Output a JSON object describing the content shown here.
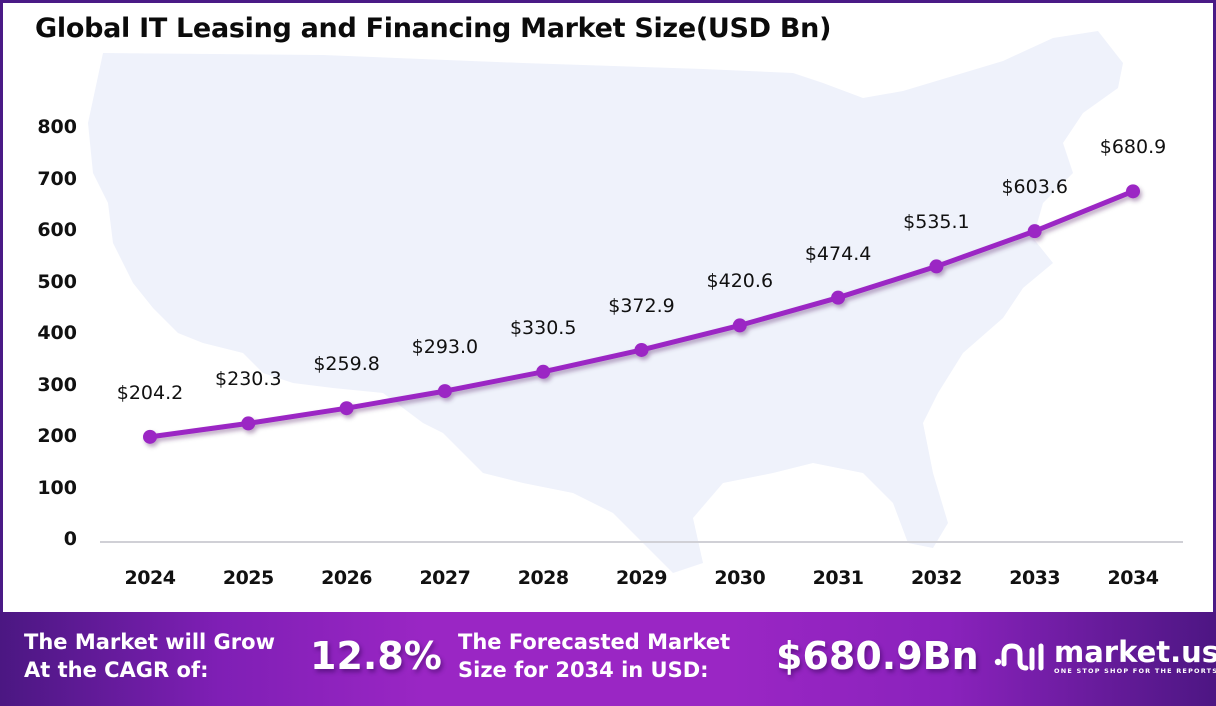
{
  "title": "Global IT Leasing and Financing Market Size(USD Bn)",
  "colors": {
    "line": "#9b27c4",
    "border": "#4a1a86",
    "map": "#eff2fb",
    "axis": "#d0d0d6",
    "footer_start": "#4b1782",
    "footer_mid": "#9a26c4"
  },
  "chart_data": {
    "type": "line",
    "title": "Global IT Leasing and Financing Market Size(USD Bn)",
    "xlabel": "",
    "ylabel": "",
    "categories": [
      "2024",
      "2025",
      "2026",
      "2027",
      "2028",
      "2029",
      "2030",
      "2031",
      "2032",
      "2033",
      "2034"
    ],
    "series": [
      {
        "name": "Market Size (USD Bn)",
        "values": [
          204.2,
          230.3,
          259.8,
          293.0,
          330.5,
          372.9,
          420.6,
          474.4,
          535.1,
          603.6,
          680.9
        ]
      }
    ],
    "data_labels": [
      "$204.2",
      "$230.3",
      "$259.8",
      "$293.0",
      "$330.5",
      "$372.9",
      "$420.6",
      "$474.4",
      "$535.1",
      "$603.6",
      "$680.9"
    ],
    "yticks": [
      "0",
      "100",
      "200",
      "300",
      "400",
      "500",
      "600",
      "700",
      "800"
    ],
    "ylim": [
      0,
      800
    ],
    "grid": false,
    "legend": "none",
    "background": "faded US map silhouette"
  },
  "footer": {
    "cagr_label_line1": "The Market will Grow",
    "cagr_label_line2": "At the CAGR of:",
    "cagr_value": "12.8%",
    "forecast_label_line1": "The Forecasted Market",
    "forecast_label_line2": "Size for 2034 in USD:",
    "forecast_value": "$680.9Bn",
    "brand_name": "market.us",
    "brand_tagline": "ONE STOP SHOP FOR THE REPORTS"
  }
}
